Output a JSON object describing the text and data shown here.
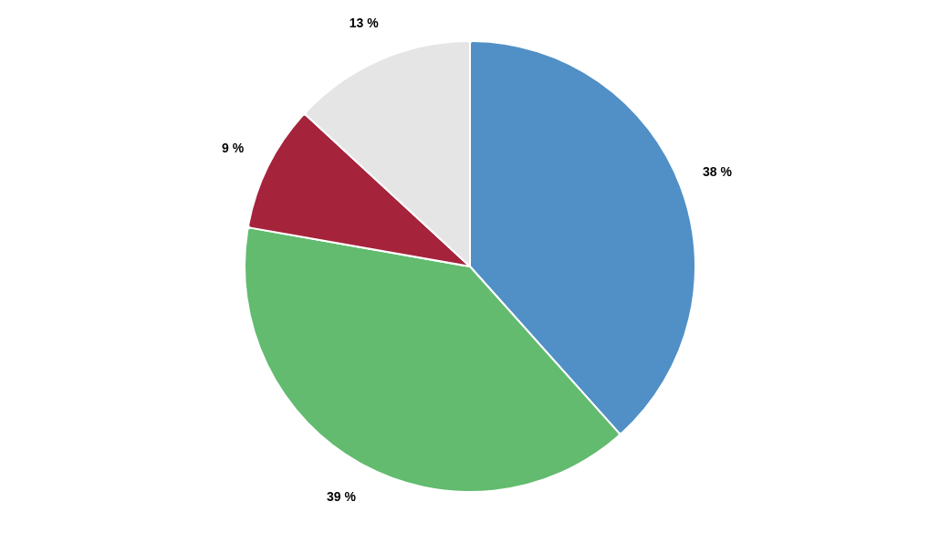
{
  "chart_data": {
    "type": "pie",
    "categories": [
      null,
      null,
      null,
      null
    ],
    "values": [
      38,
      39,
      9,
      13
    ],
    "value_labels": [
      "38 %",
      "39 %",
      "9 %",
      "13 %"
    ],
    "colors": [
      "#5190c6",
      "#62bb6f",
      "#a5233b",
      "#e5e5e5"
    ]
  }
}
